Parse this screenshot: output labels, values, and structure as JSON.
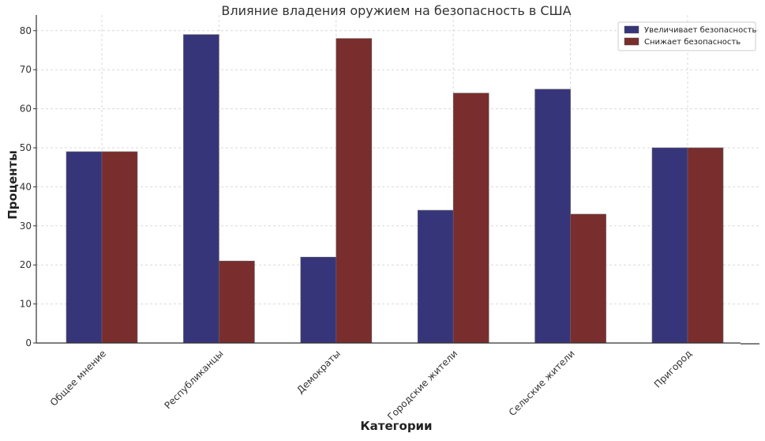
{
  "chart_data": {
    "type": "bar",
    "title": "Влияние владения оружием на безопасность в США",
    "xlabel": "Категории",
    "ylabel": "Проценты",
    "ylim": [
      0,
      84
    ],
    "yticks": [
      0,
      10,
      20,
      30,
      40,
      50,
      60,
      70,
      80
    ],
    "grid": true,
    "legend_position": "top-right",
    "categories": [
      "Общее мнение",
      "Республиканцы",
      "Демократы",
      "Городские жители",
      "Сельские жители",
      "Пригород"
    ],
    "series": [
      {
        "name": "Увеличивает безопасность",
        "color": "#37357a",
        "values": [
          49,
          79,
          22,
          34,
          65,
          50
        ]
      },
      {
        "name": "Снижает безопасность",
        "color": "#7a2d2d",
        "values": [
          49,
          21,
          78,
          64,
          33,
          50
        ]
      }
    ]
  }
}
